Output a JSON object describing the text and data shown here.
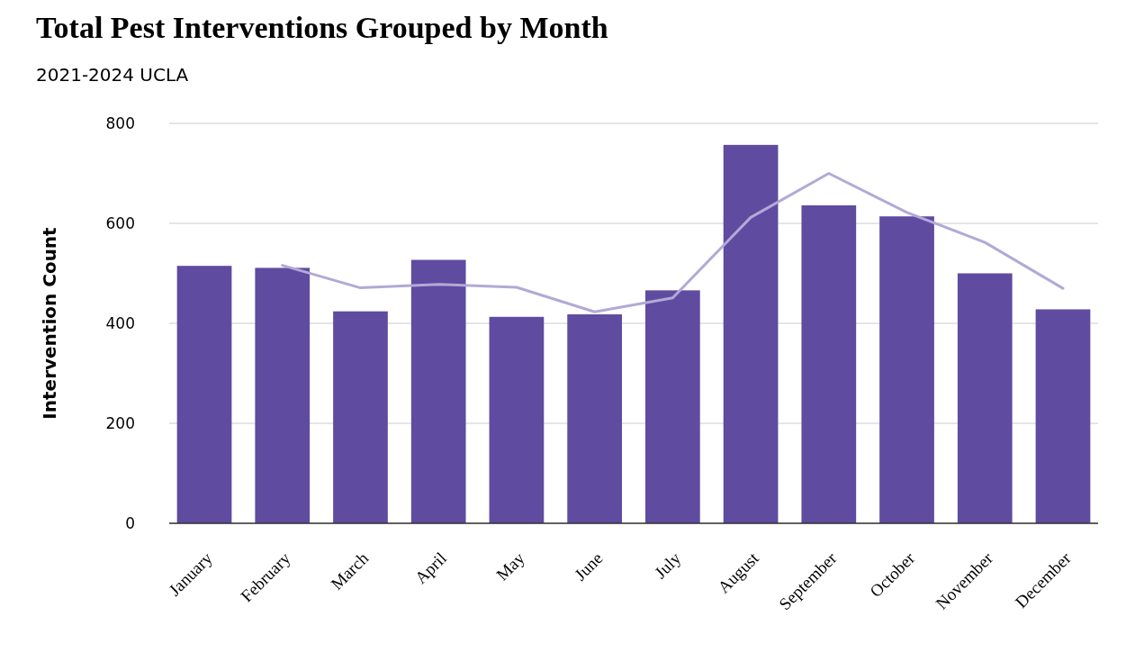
{
  "chart_data": {
    "type": "bar",
    "title": "Total Pest Interventions Grouped by Month",
    "subtitle": "2021-2024 UCLA",
    "ylabel": "Intervention Count",
    "categories": [
      "January",
      "February",
      "March",
      "April",
      "May",
      "June",
      "July",
      "August",
      "September",
      "October",
      "November",
      "December"
    ],
    "series": [
      {
        "color": "#5f4ba0",
        "values": [
          515,
          511,
          424,
          527,
          413,
          418,
          466,
          757,
          636,
          614,
          500,
          428
        ]
      },
      {
        "type": "line",
        "color": "#b3a9d6",
        "values": [
          null,
          516,
          471,
          478,
          472,
          423,
          451,
          612,
          700,
          622,
          562,
          470
        ]
      }
    ],
    "ylim": [
      0,
      800
    ],
    "yticks": [
      0,
      200,
      400,
      600,
      800
    ],
    "grid": "y"
  }
}
